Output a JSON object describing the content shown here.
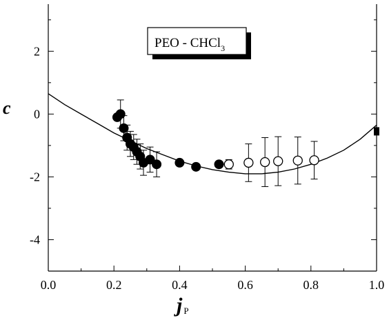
{
  "chart_data": {
    "type": "scatter",
    "title": "",
    "legend_text": "PEO - CHCl",
    "legend_subscript": "3",
    "legend_position": "top-center",
    "xlabel": "j",
    "xlabel_subscript": "P",
    "ylabel": "c",
    "xlim": [
      0.0,
      1.0
    ],
    "ylim": [
      -5.0,
      3.5
    ],
    "x_ticks": [
      "0.0",
      "0.2",
      "0.4",
      "0.6",
      "0.8",
      "1.0"
    ],
    "y_ticks": [
      "2",
      "0",
      "-2",
      "-4"
    ],
    "x_tick_values": [
      0.0,
      0.2,
      0.4,
      0.6,
      0.8,
      1.0
    ],
    "y_tick_values": [
      2,
      0,
      -2,
      -4
    ],
    "grid": false,
    "series": [
      {
        "marker": "filled-circle",
        "points": [
          {
            "x": 0.21,
            "y": -0.1,
            "err": 0
          },
          {
            "x": 0.22,
            "y": 0.0,
            "err": 0.45
          },
          {
            "x": 0.23,
            "y": -0.45,
            "err": 0.4
          },
          {
            "x": 0.24,
            "y": -0.75,
            "err": 0.4
          },
          {
            "x": 0.25,
            "y": -0.95,
            "err": 0.4
          },
          {
            "x": 0.26,
            "y": -1.05,
            "err": 0.4
          },
          {
            "x": 0.27,
            "y": -1.2,
            "err": 0.4
          },
          {
            "x": 0.28,
            "y": -1.35,
            "err": 0.4
          },
          {
            "x": 0.29,
            "y": -1.55,
            "err": 0.4
          },
          {
            "x": 0.31,
            "y": -1.45,
            "err": 0.4
          },
          {
            "x": 0.33,
            "y": -1.6,
            "err": 0.4
          },
          {
            "x": 0.4,
            "y": -1.55,
            "err": 0
          },
          {
            "x": 0.45,
            "y": -1.68,
            "err": 0
          },
          {
            "x": 0.52,
            "y": -1.6,
            "err": 0
          }
        ]
      },
      {
        "marker": "open-circle",
        "points": [
          {
            "x": 0.55,
            "y": -1.6,
            "err": 0.15
          },
          {
            "x": 0.61,
            "y": -1.55,
            "err": 0.6
          },
          {
            "x": 0.66,
            "y": -1.53,
            "err": 0.78
          },
          {
            "x": 0.7,
            "y": -1.5,
            "err": 0.78
          },
          {
            "x": 0.76,
            "y": -1.48,
            "err": 0.75
          },
          {
            "x": 0.81,
            "y": -1.47,
            "err": 0.6
          }
        ]
      },
      {
        "marker": "filled-square",
        "points": [
          {
            "x": 1.0,
            "y": -0.55,
            "err": 0
          }
        ]
      }
    ],
    "fit_curve": {
      "x": [
        0.0,
        0.05,
        0.1,
        0.15,
        0.2,
        0.25,
        0.3,
        0.35,
        0.4,
        0.45,
        0.5,
        0.55,
        0.6,
        0.65,
        0.7,
        0.75,
        0.8,
        0.85,
        0.9,
        0.95,
        1.0
      ],
      "y": [
        0.65,
        0.3,
        0.0,
        -0.3,
        -0.6,
        -0.85,
        -1.1,
        -1.3,
        -1.5,
        -1.65,
        -1.77,
        -1.85,
        -1.9,
        -1.9,
        -1.85,
        -1.75,
        -1.6,
        -1.4,
        -1.15,
        -0.8,
        -0.35
      ]
    }
  }
}
